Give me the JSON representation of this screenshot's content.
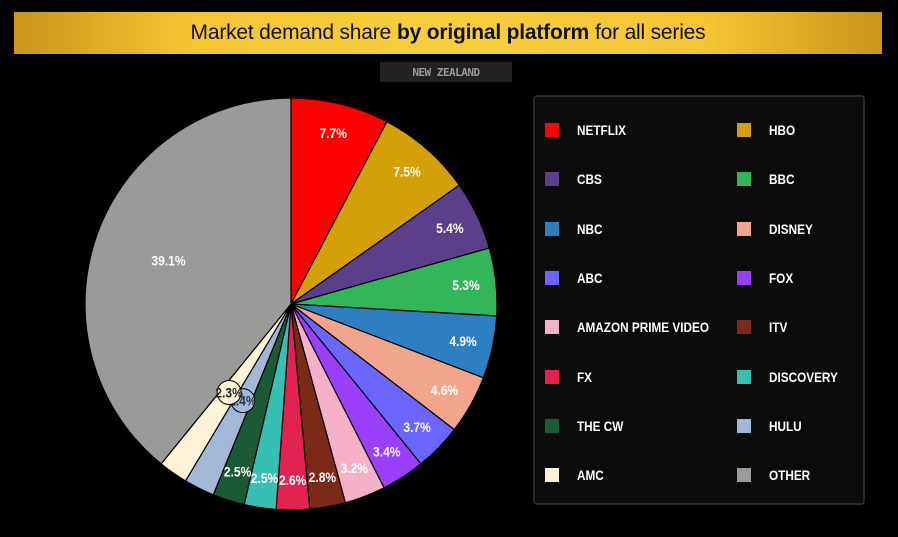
{
  "header": {
    "title_prefix": "Market demand share",
    "title_bold": "by original platform",
    "title_suffix": "for all series",
    "region": "NEW ZEALAND"
  },
  "chart_data": {
    "type": "pie",
    "title": "Market demand share by original platform for all series",
    "subtitle": "NEW ZEALAND",
    "legend_position": "right",
    "slices": [
      {
        "label": "NETFLIX",
        "value": 7.7,
        "display": "7.7%",
        "color": "#ff0000"
      },
      {
        "label": "HBO",
        "value": 7.5,
        "display": "7.5%",
        "color": "#d4a00a"
      },
      {
        "label": "CBS",
        "value": 5.4,
        "display": "5.4%",
        "color": "#5b3f8a"
      },
      {
        "label": "BBC",
        "value": 5.3,
        "display": "5.3%",
        "color": "#33b55a"
      },
      {
        "label": "NBC",
        "value": 4.9,
        "display": "4.9%",
        "color": "#2e7fc1"
      },
      {
        "label": "DISNEY",
        "value": 4.6,
        "display": "4.6%",
        "color": "#f2a58c"
      },
      {
        "label": "ABC",
        "value": 3.7,
        "display": "3.7%",
        "color": "#6a66ff"
      },
      {
        "label": "FOX",
        "value": 3.4,
        "display": "3.4%",
        "color": "#9a3ffa"
      },
      {
        "label": "AMAZON PRIME VIDEO",
        "value": 3.2,
        "display": "3.2%",
        "color": "#f5b1c8"
      },
      {
        "label": "ITV",
        "value": 2.8,
        "display": "2.8%",
        "color": "#7b2a17"
      },
      {
        "label": "FX",
        "value": 2.6,
        "display": "2.6%",
        "color": "#e2234f"
      },
      {
        "label": "DISCOVERY",
        "value": 2.5,
        "display": "2.5%",
        "color": "#36c0b3"
      },
      {
        "label": "THE CW",
        "value": 2.5,
        "display": "2.5%",
        "color": "#1b5a35"
      },
      {
        "label": "HULU",
        "value": 2.4,
        "display": "2.4%",
        "color": "#a3b8d8"
      },
      {
        "label": "AMC",
        "value": 2.3,
        "display": "2.3%",
        "color": "#fdf4d8"
      },
      {
        "label": "OTHER",
        "value": 39.1,
        "display": "39.1%",
        "color": "#9a9a98"
      }
    ]
  }
}
